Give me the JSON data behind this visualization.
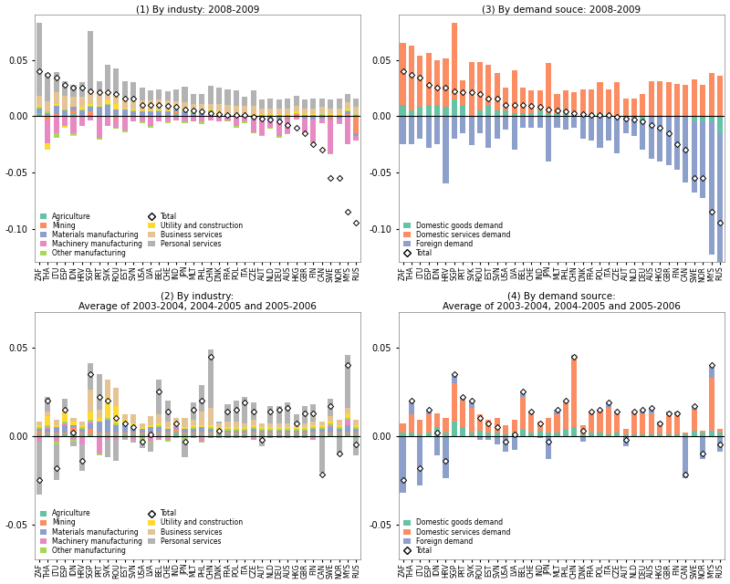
{
  "countries": [
    "ZAF",
    "THA",
    "LTU",
    "ESP",
    "IDN",
    "HRV",
    "SGP",
    "PRT",
    "SVK",
    "ROU",
    "EST",
    "SVN",
    "USA",
    "LVA",
    "BEL",
    "CHE",
    "IND",
    "JPN",
    "MLT",
    "PHL",
    "CHN",
    "DNK",
    "FRA",
    "POL",
    "ITA",
    "CZE",
    "AUT",
    "NLD",
    "DEU",
    "AUS",
    "HKG",
    "GBR",
    "FIN",
    "CAN",
    "SWE",
    "NOR",
    "MYS",
    "RUS"
  ],
  "ind_colors": {
    "Agriculture": "#66C2A5",
    "Mining": "#FC8D62",
    "Materials manufacturing": "#8DA0CB",
    "Machinery manufacturing": "#E78AC3",
    "Other manufacturing": "#A6D854",
    "Utility and construction": "#FFD92F",
    "Business services": "#E5C494",
    "Personal services": "#B3B3B3"
  },
  "dem_colors": {
    "Domestic goods demand": "#66C2A5",
    "Domestic services demand": "#FC8D62",
    "Foreign demand": "#8DA0CB"
  },
  "panel1_title": "(1) By industy: 2008-2009",
  "panel2_title": "(2) By industry:",
  "panel2_subtitle": "Average of 2003-2004, 2004-2005 and 2005-2006",
  "panel3_title": "(3) By demand souce: 2008-2009",
  "panel4_title": "(4) By demand source:",
  "panel4_subtitle": "Average of 2003-2004, 2004-2005 and 2005-2006",
  "panel1": {
    "Agriculture": [
      0.002,
      0.001,
      0.001,
      0.001,
      0.002,
      0.001,
      0.001,
      0.001,
      0.001,
      0.001,
      0.001,
      0.001,
      0.001,
      0.001,
      0.001,
      0.001,
      0.002,
      0.001,
      0.001,
      0.001,
      0.001,
      0.001,
      0.001,
      0.001,
      0.001,
      0.001,
      0.001,
      0.001,
      0.001,
      0.001,
      0.001,
      0.001,
      0.001,
      0.001,
      0.001,
      0.001,
      0.001,
      0.001
    ],
    "Mining": [
      0.001,
      -0.004,
      0.001,
      -0.001,
      0.003,
      -0.001,
      0.003,
      -0.001,
      -0.001,
      -0.002,
      -0.001,
      -0.001,
      -0.001,
      -0.001,
      -0.001,
      -0.001,
      0.002,
      -0.001,
      -0.001,
      -0.001,
      0.001,
      -0.001,
      -0.001,
      -0.001,
      -0.001,
      -0.001,
      -0.001,
      -0.001,
      -0.001,
      -0.002,
      0.001,
      -0.001,
      -0.001,
      -0.001,
      -0.002,
      -0.001,
      0.001,
      -0.015
    ],
    "Materials manufacturing": [
      0.004,
      0.002,
      0.007,
      0.004,
      0.003,
      0.004,
      0.004,
      0.007,
      0.009,
      0.005,
      0.005,
      0.003,
      0.003,
      0.003,
      0.003,
      0.003,
      0.002,
      0.003,
      0.002,
      0.002,
      0.002,
      0.001,
      0.001,
      0.001,
      0.001,
      -0.001,
      -0.001,
      -0.001,
      -0.002,
      -0.001,
      -0.001,
      -0.001,
      -0.002,
      -0.001,
      -0.001,
      -0.001,
      0.002,
      -0.003
    ],
    "Machinery manufacturing": [
      -0.001,
      -0.02,
      -0.015,
      -0.008,
      -0.015,
      -0.008,
      -0.004,
      -0.018,
      -0.008,
      -0.008,
      -0.012,
      -0.004,
      -0.004,
      -0.008,
      -0.004,
      -0.004,
      -0.004,
      -0.004,
      -0.004,
      -0.004,
      -0.004,
      -0.004,
      -0.003,
      -0.008,
      -0.004,
      -0.012,
      -0.015,
      -0.008,
      -0.015,
      -0.012,
      -0.002,
      -0.012,
      -0.02,
      -0.004,
      -0.03,
      -0.004,
      -0.025,
      -0.004
    ],
    "Other manufacturing": [
      0.001,
      0.001,
      -0.004,
      0.001,
      -0.002,
      0.001,
      0.001,
      -0.002,
      0.001,
      -0.001,
      -0.001,
      0.001,
      -0.001,
      -0.001,
      0.001,
      -0.001,
      0.001,
      -0.001,
      0.001,
      -0.002,
      0.001,
      0.001,
      -0.001,
      -0.001,
      -0.001,
      -0.001,
      -0.001,
      -0.001,
      -0.001,
      -0.001,
      0.001,
      -0.001,
      -0.001,
      0.001,
      -0.001,
      -0.001,
      0.001,
      0.001
    ],
    "Utility and construction": [
      0.001,
      -0.006,
      0.002,
      -0.001,
      -0.001,
      0.002,
      0.002,
      0.001,
      0.004,
      0.005,
      0.001,
      0.001,
      0.001,
      0.001,
      0.001,
      0.001,
      0.001,
      0.001,
      0.001,
      0.001,
      0.001,
      0.001,
      0.001,
      0.001,
      0.001,
      0.001,
      0.001,
      0.001,
      0.001,
      0.001,
      0.001,
      0.001,
      0.001,
      0.001,
      0.001,
      0.001,
      0.002,
      0.001
    ],
    "Business services": [
      0.009,
      0.009,
      0.01,
      0.012,
      0.009,
      0.009,
      0.01,
      0.011,
      0.009,
      0.009,
      0.01,
      0.01,
      0.009,
      0.009,
      0.009,
      0.009,
      0.005,
      0.007,
      0.006,
      0.007,
      0.005,
      0.007,
      0.007,
      0.006,
      0.006,
      0.007,
      0.005,
      0.005,
      0.005,
      0.005,
      0.005,
      0.005,
      0.005,
      0.005,
      0.005,
      0.005,
      0.005,
      0.005
    ],
    "Personal services": [
      0.065,
      0.025,
      0.018,
      0.013,
      0.011,
      0.013,
      0.055,
      0.011,
      0.022,
      0.022,
      0.014,
      0.014,
      0.011,
      0.009,
      0.009,
      0.008,
      0.011,
      0.014,
      0.009,
      0.009,
      0.016,
      0.014,
      0.014,
      0.014,
      0.008,
      0.014,
      0.008,
      0.009,
      0.008,
      0.009,
      0.009,
      0.008,
      0.009,
      0.008,
      0.008,
      0.009,
      0.008,
      0.008
    ],
    "Total": [
      0.04,
      0.037,
      0.034,
      0.028,
      0.025,
      0.025,
      0.022,
      0.021,
      0.021,
      0.02,
      0.016,
      0.016,
      0.01,
      0.01,
      0.01,
      0.009,
      0.008,
      0.006,
      0.005,
      0.004,
      0.003,
      0.002,
      0.001,
      0.001,
      0.001,
      -0.001,
      -0.002,
      -0.003,
      -0.005,
      -0.008,
      -0.01,
      -0.015,
      -0.025,
      -0.03,
      -0.055,
      -0.055,
      -0.085,
      -0.095
    ]
  },
  "panel3": {
    "Domestic goods demand": [
      0.01,
      0.005,
      0.008,
      0.01,
      0.01,
      0.008,
      0.015,
      0.01,
      -0.001,
      0.005,
      0.01,
      0.005,
      0.005,
      0.003,
      0.003,
      0.003,
      0.005,
      0.003,
      0.002,
      0.003,
      0.003,
      0.002,
      0.002,
      0.002,
      0.002,
      -0.001,
      0.001,
      0.001,
      -0.005,
      0.001,
      0.001,
      -0.001,
      0.001,
      -0.001,
      -0.005,
      -0.005,
      -0.005,
      -0.015
    ],
    "Domestic services demand": [
      0.055,
      0.058,
      0.046,
      0.046,
      0.04,
      0.043,
      0.068,
      0.022,
      0.048,
      0.043,
      0.036,
      0.033,
      0.02,
      0.038,
      0.022,
      0.02,
      0.018,
      0.044,
      0.018,
      0.02,
      0.018,
      0.022,
      0.022,
      0.028,
      0.022,
      0.03,
      0.015,
      0.015,
      0.02,
      0.03,
      0.03,
      0.03,
      0.028,
      0.028,
      0.033,
      0.028,
      0.038,
      0.036
    ],
    "Foreign demand": [
      -0.025,
      -0.025,
      -0.02,
      -0.028,
      -0.025,
      -0.06,
      -0.02,
      -0.015,
      -0.025,
      -0.015,
      -0.028,
      -0.02,
      -0.012,
      -0.03,
      -0.01,
      -0.01,
      -0.01,
      -0.04,
      -0.01,
      -0.012,
      -0.01,
      -0.02,
      -0.022,
      -0.028,
      -0.022,
      -0.032,
      -0.015,
      -0.018,
      -0.025,
      -0.038,
      -0.04,
      -0.043,
      -0.048,
      -0.058,
      -0.063,
      -0.068,
      -0.118,
      -0.128
    ],
    "Total": [
      0.04,
      0.037,
      0.034,
      0.028,
      0.025,
      0.025,
      0.022,
      0.021,
      0.021,
      0.02,
      0.016,
      0.016,
      0.01,
      0.01,
      0.01,
      0.009,
      0.008,
      0.006,
      0.005,
      0.004,
      0.003,
      0.002,
      0.001,
      0.001,
      0.001,
      -0.001,
      -0.002,
      -0.003,
      -0.005,
      -0.008,
      -0.01,
      -0.015,
      -0.025,
      -0.03,
      -0.055,
      -0.055,
      -0.085,
      -0.095
    ]
  },
  "panel2": {
    "Agriculture": [
      0.001,
      0.001,
      0.001,
      0.001,
      0.002,
      0.001,
      0.001,
      0.001,
      0.001,
      0.001,
      0.001,
      0.001,
      0.001,
      0.001,
      0.001,
      0.001,
      0.002,
      0.001,
      0.001,
      0.001,
      0.001,
      0.001,
      0.001,
      0.001,
      0.001,
      0.001,
      0.001,
      0.001,
      0.001,
      0.001,
      0.001,
      0.001,
      0.001,
      0.001,
      0.001,
      0.001,
      0.001,
      0.001
    ],
    "Mining": [
      0.002,
      0.001,
      0.001,
      0.001,
      0.003,
      0.001,
      0.003,
      0.001,
      0.001,
      0.001,
      0.001,
      0.001,
      0.001,
      0.001,
      0.001,
      0.001,
      0.002,
      0.001,
      0.001,
      0.001,
      0.001,
      0.001,
      0.001,
      0.001,
      0.001,
      0.001,
      0.001,
      0.001,
      0.001,
      0.001,
      0.001,
      0.001,
      0.001,
      0.001,
      0.001,
      0.001,
      0.001,
      0.001
    ],
    "Materials manufacturing": [
      0.001,
      0.002,
      0.003,
      0.004,
      0.001,
      0.002,
      0.003,
      0.006,
      0.007,
      0.004,
      0.005,
      0.003,
      0.002,
      0.003,
      0.003,
      0.002,
      0.001,
      0.002,
      0.002,
      0.003,
      0.002,
      0.001,
      0.001,
      0.001,
      0.001,
      0.002,
      0.001,
      0.001,
      0.001,
      0.001,
      0.001,
      0.001,
      0.002,
      0.002,
      0.003,
      0.002,
      0.004,
      0.002
    ],
    "Machinery manufacturing": [
      -0.003,
      0.001,
      -0.003,
      0.001,
      -0.002,
      -0.005,
      0.001,
      -0.01,
      -0.002,
      -0.002,
      -0.001,
      -0.002,
      -0.001,
      -0.003,
      -0.002,
      -0.002,
      0.001,
      -0.001,
      -0.001,
      -0.003,
      -0.001,
      -0.001,
      -0.001,
      -0.001,
      -0.001,
      -0.002,
      -0.001,
      -0.001,
      -0.001,
      -0.001,
      -0.001,
      -0.001,
      -0.002,
      -0.001,
      0.001,
      -0.001,
      0.003,
      -0.001
    ],
    "Other manufacturing": [
      0.001,
      0.001,
      -0.002,
      0.001,
      -0.001,
      0.001,
      0.001,
      -0.001,
      0.001,
      0.001,
      0.001,
      0.001,
      -0.001,
      -0.001,
      0.001,
      -0.001,
      0.001,
      -0.001,
      0.001,
      -0.001,
      0.001,
      0.001,
      0.001,
      0.001,
      0.001,
      0.001,
      0.001,
      0.001,
      0.001,
      0.001,
      0.001,
      0.001,
      0.001,
      0.001,
      0.001,
      0.001,
      0.001,
      0.001
    ],
    "Utility and construction": [
      0.001,
      0.005,
      0.001,
      0.005,
      0.002,
      0.001,
      0.005,
      0.002,
      0.012,
      0.01,
      0.001,
      0.001,
      0.001,
      0.001,
      0.001,
      0.001,
      0.001,
      0.001,
      0.001,
      0.001,
      0.001,
      0.001,
      0.001,
      0.001,
      0.001,
      0.001,
      0.001,
      0.001,
      0.001,
      0.001,
      0.001,
      0.001,
      0.001,
      0.001,
      0.001,
      0.001,
      0.003,
      0.001
    ],
    "Business services": [
      0.002,
      0.003,
      0.003,
      0.003,
      0.002,
      0.002,
      0.012,
      0.005,
      0.01,
      0.01,
      0.003,
      0.005,
      0.002,
      0.005,
      0.005,
      0.003,
      0.002,
      0.005,
      0.003,
      0.008,
      0.01,
      0.002,
      0.003,
      0.003,
      0.002,
      0.003,
      0.002,
      0.002,
      0.002,
      0.002,
      0.002,
      0.002,
      0.002,
      0.002,
      0.003,
      0.003,
      0.003,
      0.003
    ],
    "Personal services": [
      -0.03,
      0.008,
      -0.02,
      0.005,
      -0.003,
      -0.015,
      0.015,
      0.02,
      -0.01,
      -0.012,
      -0.001,
      -0.002,
      -0.005,
      -0.005,
      0.02,
      0.012,
      -0.001,
      -0.01,
      0.01,
      0.015,
      0.033,
      0.001,
      0.01,
      0.012,
      0.015,
      0.01,
      -0.005,
      0.01,
      0.01,
      0.012,
      0.005,
      0.01,
      0.01,
      -0.02,
      0.01,
      -0.01,
      0.03,
      -0.01
    ],
    "Total": [
      -0.025,
      0.02,
      -0.018,
      0.015,
      0.002,
      -0.014,
      0.035,
      0.022,
      0.02,
      0.01,
      0.007,
      0.005,
      -0.003,
      0.001,
      0.025,
      0.014,
      0.007,
      -0.003,
      0.015,
      0.02,
      0.045,
      0.003,
      0.014,
      0.015,
      0.019,
      0.014,
      -0.002,
      0.014,
      0.015,
      0.016,
      0.007,
      0.013,
      0.013,
      -0.022,
      0.017,
      -0.01,
      0.04,
      -0.005
    ]
  },
  "panel4": {
    "Domestic goods demand": [
      0.002,
      0.002,
      0.001,
      0.002,
      0.005,
      0.002,
      0.008,
      0.005,
      0.002,
      0.003,
      0.002,
      0.002,
      0.001,
      0.002,
      0.004,
      0.002,
      0.003,
      0.002,
      0.002,
      0.004,
      0.005,
      0.001,
      0.002,
      0.002,
      0.001,
      0.002,
      0.001,
      0.001,
      0.001,
      0.001,
      0.001,
      0.001,
      0.001,
      0.001,
      0.003,
      0.002,
      0.003,
      0.002
    ],
    "Domestic services demand": [
      0.005,
      0.01,
      0.008,
      0.01,
      0.008,
      0.008,
      0.022,
      0.015,
      0.014,
      0.009,
      0.007,
      0.008,
      0.005,
      0.007,
      0.018,
      0.01,
      0.005,
      0.008,
      0.01,
      0.015,
      0.04,
      0.005,
      0.01,
      0.012,
      0.015,
      0.01,
      0.003,
      0.012,
      0.012,
      0.012,
      0.006,
      0.012,
      0.012,
      0.001,
      0.012,
      0.001,
      0.03,
      0.002
    ],
    "Foreign demand": [
      -0.032,
      0.008,
      -0.028,
      0.003,
      -0.011,
      -0.024,
      0.005,
      0.002,
      0.004,
      -0.002,
      -0.002,
      -0.005,
      -0.009,
      -0.008,
      0.003,
      0.002,
      -0.001,
      -0.013,
      0.003,
      0.001,
      0.001,
      -0.003,
      0.002,
      0.001,
      0.003,
      0.002,
      -0.006,
      0.001,
      0.002,
      0.003,
      0.001,
      0.001,
      0.001,
      -0.024,
      0.002,
      -0.013,
      0.007,
      -0.009
    ],
    "Total": [
      -0.025,
      0.02,
      -0.018,
      0.015,
      0.002,
      -0.014,
      0.035,
      0.022,
      0.02,
      0.01,
      0.007,
      0.005,
      -0.003,
      0.001,
      0.025,
      0.014,
      0.007,
      -0.003,
      0.015,
      0.02,
      0.045,
      0.003,
      0.014,
      0.015,
      0.019,
      0.014,
      -0.002,
      0.014,
      0.015,
      0.016,
      0.007,
      0.013,
      0.013,
      -0.022,
      0.017,
      -0.01,
      0.04,
      -0.005
    ]
  },
  "ylim1": [
    -0.13,
    0.09
  ],
  "ylim2": [
    -0.07,
    0.07
  ],
  "yticks1": [
    -0.1,
    -0.05,
    0.0,
    0.05
  ],
  "yticks2": [
    -0.05,
    0.0,
    0.05
  ],
  "figsize": [
    8.0,
    6.4
  ],
  "dpi": 100
}
